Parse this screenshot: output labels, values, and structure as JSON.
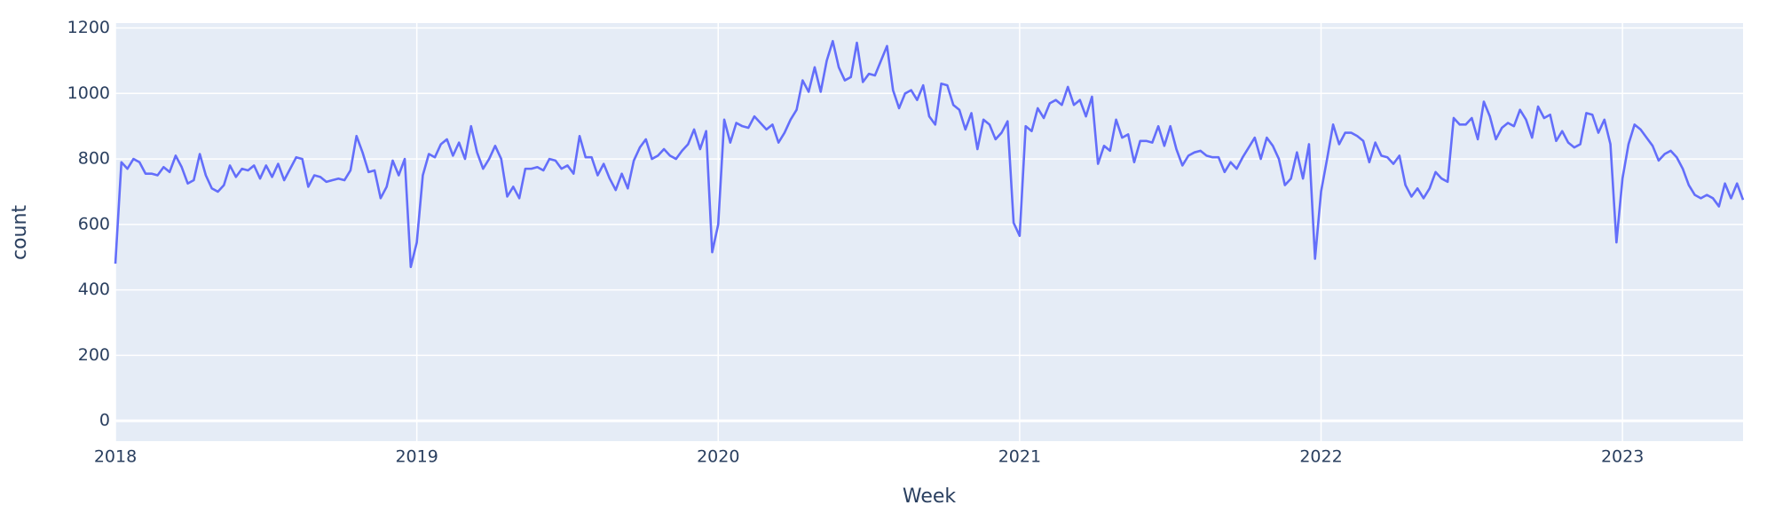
{
  "chart_data": {
    "type": "line",
    "x_label": "Week",
    "y_label": "count",
    "color": "#636efa",
    "grid": true,
    "xlim": [
      2018,
      2023.4
    ],
    "xticks": [
      2018,
      2019,
      2020,
      2021,
      2022,
      2023
    ],
    "ylim": [
      -62,
      1215
    ],
    "yticks": [
      0,
      200,
      400,
      600,
      800,
      1000,
      1200
    ],
    "x": [
      2018.0,
      2018.02,
      2018.04,
      2018.06,
      2018.08,
      2018.1,
      2018.12,
      2018.14,
      2018.16,
      2018.18,
      2018.2,
      2018.22,
      2018.24,
      2018.26,
      2018.28,
      2018.3,
      2018.32,
      2018.34,
      2018.36,
      2018.38,
      2018.4,
      2018.42,
      2018.44,
      2018.46,
      2018.48,
      2018.5,
      2018.52,
      2018.54,
      2018.56,
      2018.58,
      2018.6,
      2018.62,
      2018.64,
      2018.66,
      2018.68,
      2018.7,
      2018.72,
      2018.74,
      2018.76,
      2018.78,
      2018.8,
      2018.82,
      2018.84,
      2018.86,
      2018.88,
      2018.9,
      2018.92,
      2018.94,
      2018.96,
      2018.98,
      2019.0,
      2019.02,
      2019.04,
      2019.06,
      2019.08,
      2019.1,
      2019.12,
      2019.14,
      2019.16,
      2019.18,
      2019.2,
      2019.22,
      2019.24,
      2019.26,
      2019.28,
      2019.3,
      2019.32,
      2019.34,
      2019.36,
      2019.38,
      2019.4,
      2019.42,
      2019.44,
      2019.46,
      2019.48,
      2019.5,
      2019.52,
      2019.54,
      2019.56,
      2019.58,
      2019.6,
      2019.62,
      2019.64,
      2019.66,
      2019.68,
      2019.7,
      2019.72,
      2019.74,
      2019.76,
      2019.78,
      2019.8,
      2019.82,
      2019.84,
      2019.86,
      2019.88,
      2019.9,
      2019.92,
      2019.94,
      2019.96,
      2019.98,
      2020.0,
      2020.02,
      2020.04,
      2020.06,
      2020.08,
      2020.1,
      2020.12,
      2020.14,
      2020.16,
      2020.18,
      2020.2,
      2020.22,
      2020.24,
      2020.26,
      2020.28,
      2020.3,
      2020.32,
      2020.34,
      2020.36,
      2020.38,
      2020.4,
      2020.42,
      2020.44,
      2020.46,
      2020.48,
      2020.5,
      2020.52,
      2020.54,
      2020.56,
      2020.58,
      2020.6,
      2020.62,
      2020.64,
      2020.66,
      2020.68,
      2020.7,
      2020.72,
      2020.74,
      2020.76,
      2020.78,
      2020.8,
      2020.82,
      2020.84,
      2020.86,
      2020.88,
      2020.9,
      2020.92,
      2020.94,
      2020.96,
      2020.98,
      2021.0,
      2021.02,
      2021.04,
      2021.06,
      2021.08,
      2021.1,
      2021.12,
      2021.14,
      2021.16,
      2021.18,
      2021.2,
      2021.22,
      2021.24,
      2021.26,
      2021.28,
      2021.3,
      2021.32,
      2021.34,
      2021.36,
      2021.38,
      2021.4,
      2021.42,
      2021.44,
      2021.46,
      2021.48,
      2021.5,
      2021.52,
      2021.54,
      2021.56,
      2021.58,
      2021.6,
      2021.62,
      2021.64,
      2021.66,
      2021.68,
      2021.7,
      2021.72,
      2021.74,
      2021.76,
      2021.78,
      2021.8,
      2021.82,
      2021.84,
      2021.86,
      2021.88,
      2021.9,
      2021.92,
      2021.94,
      2021.96,
      2021.98,
      2022.0,
      2022.02,
      2022.04,
      2022.06,
      2022.08,
      2022.1,
      2022.12,
      2022.14,
      2022.16,
      2022.18,
      2022.2,
      2022.22,
      2022.24,
      2022.26,
      2022.28,
      2022.3,
      2022.32,
      2022.34,
      2022.36,
      2022.38,
      2022.4,
      2022.42,
      2022.44,
      2022.46,
      2022.48,
      2022.5,
      2022.52,
      2022.54,
      2022.56,
      2022.58,
      2022.6,
      2022.62,
      2022.64,
      2022.66,
      2022.68,
      2022.7,
      2022.72,
      2022.74,
      2022.76,
      2022.78,
      2022.8,
      2022.82,
      2022.84,
      2022.86,
      2022.88,
      2022.9,
      2022.92,
      2022.94,
      2022.96,
      2022.98,
      2023.0,
      2023.02,
      2023.04,
      2023.06,
      2023.08,
      2023.1,
      2023.12,
      2023.14,
      2023.16,
      2023.18,
      2023.2,
      2023.22,
      2023.24,
      2023.26,
      2023.28,
      2023.3,
      2023.32,
      2023.34,
      2023.36,
      2023.38,
      2023.4
    ],
    "values": [
      480,
      790,
      770,
      800,
      790,
      755,
      755,
      750,
      775,
      760,
      810,
      775,
      725,
      735,
      815,
      750,
      710,
      700,
      720,
      780,
      745,
      770,
      765,
      780,
      740,
      780,
      745,
      785,
      735,
      770,
      805,
      800,
      715,
      750,
      745,
      730,
      735,
      740,
      735,
      765,
      870,
      820,
      760,
      765,
      680,
      715,
      795,
      750,
      800,
      470,
      545,
      750,
      815,
      805,
      845,
      860,
      810,
      850,
      800,
      900,
      820,
      770,
      800,
      840,
      800,
      685,
      715,
      680,
      770,
      770,
      775,
      765,
      800,
      795,
      770,
      780,
      755,
      870,
      805,
      805,
      750,
      785,
      740,
      705,
      755,
      710,
      795,
      835,
      860,
      800,
      810,
      830,
      810,
      800,
      825,
      845,
      890,
      830,
      885,
      515,
      600,
      920,
      850,
      910,
      900,
      895,
      930,
      910,
      890,
      905,
      850,
      880,
      920,
      950,
      1040,
      1005,
      1080,
      1005,
      1100,
      1160,
      1080,
      1040,
      1050,
      1155,
      1035,
      1060,
      1055,
      1100,
      1145,
      1010,
      955,
      1000,
      1010,
      980,
      1025,
      930,
      905,
      1030,
      1025,
      965,
      950,
      890,
      940,
      830,
      920,
      905,
      860,
      880,
      915,
      605,
      565,
      900,
      885,
      955,
      925,
      970,
      980,
      965,
      1020,
      965,
      980,
      930,
      990,
      785,
      840,
      825,
      920,
      865,
      875,
      790,
      855,
      855,
      850,
      900,
      840,
      900,
      830,
      780,
      810,
      820,
      825,
      810,
      805,
      805,
      760,
      790,
      770,
      805,
      835,
      865,
      800,
      865,
      840,
      800,
      720,
      740,
      820,
      740,
      845,
      495,
      700,
      800,
      905,
      845,
      880,
      880,
      870,
      855,
      790,
      850,
      810,
      805,
      785,
      810,
      720,
      685,
      710,
      680,
      710,
      760,
      740,
      730,
      925,
      905,
      905,
      925,
      860,
      975,
      930,
      860,
      895,
      910,
      900,
      950,
      920,
      865,
      960,
      925,
      935,
      855,
      885,
      850,
      835,
      845,
      940,
      935,
      880,
      920,
      845,
      545,
      740,
      845,
      905,
      890,
      865,
      840,
      795,
      815,
      825,
      805,
      770,
      720,
      690,
      680,
      690,
      680,
      655,
      725,
      680,
      725,
      675
    ]
  }
}
